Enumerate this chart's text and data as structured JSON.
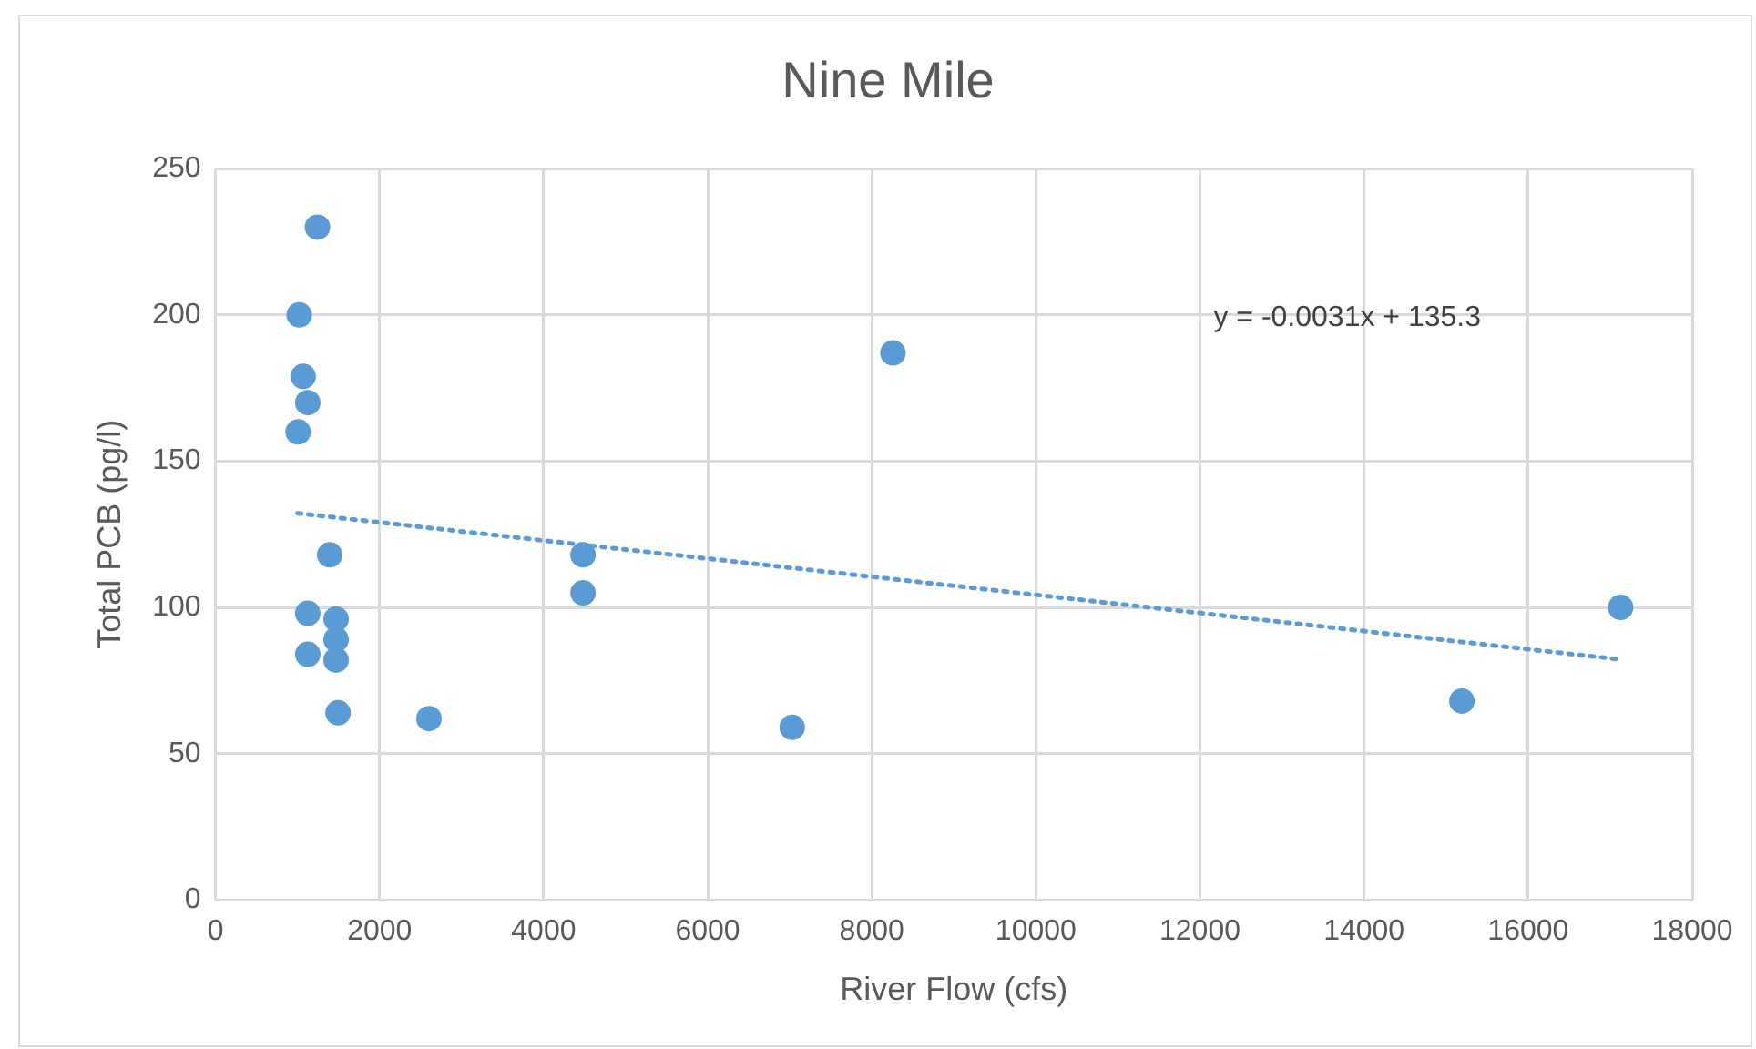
{
  "chart_data": {
    "type": "scatter",
    "title": "Nine Mile",
    "xlabel": "River Flow (cfs)",
    "ylabel": "Total PCB (pg/l)",
    "xlim": [
      0,
      18000
    ],
    "xticks": [
      0,
      2000,
      4000,
      6000,
      8000,
      10000,
      12000,
      14000,
      16000,
      18000
    ],
    "ylim": [
      0,
      250
    ],
    "yticks": [
      0,
      50,
      100,
      150,
      200,
      250
    ],
    "grid": true,
    "legend": false,
    "marker": "circle",
    "series": [
      {
        "type": "scatter",
        "color": "#5b9bd5",
        "x": [
          1243,
          1021,
          1069,
          1125,
          1007,
          1392,
          1125,
          1470,
          1470,
          1125,
          1470,
          1494,
          2602,
          4480,
          4480,
          7030,
          8257,
          15192,
          17127
        ],
        "values": [
          230,
          200,
          179,
          170,
          160,
          118,
          98,
          96,
          89,
          84,
          82,
          64,
          62,
          118,
          105,
          59,
          187,
          68,
          100
        ]
      },
      {
        "type": "line",
        "color": "#5b9bd5",
        "line_style": "dotted",
        "marker": "none",
        "x": [
          1000,
          17100
        ],
        "values": [
          132.2,
          82.3
        ]
      }
    ],
    "annotations": [
      "y = -0.0031x + 135.3"
    ]
  }
}
